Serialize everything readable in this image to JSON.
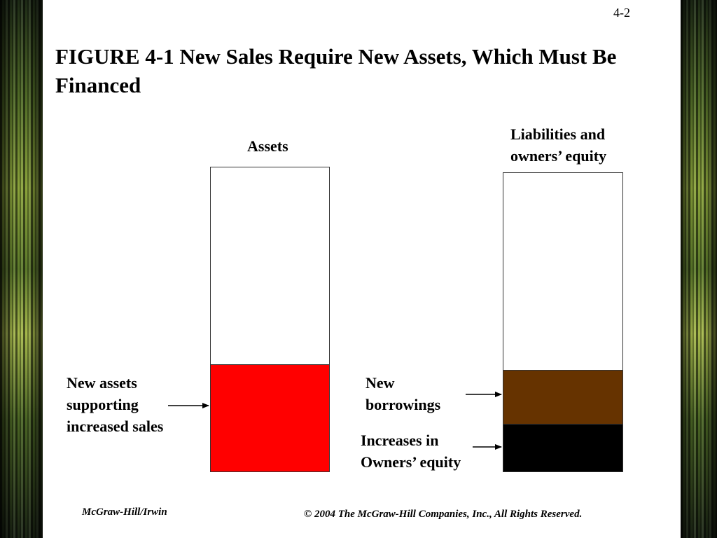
{
  "slide": {
    "page_number": "4-2",
    "title": "FIGURE 4-1 New Sales Require New Assets, Which Must Be Financed"
  },
  "diagram": {
    "assets_heading": "Assets",
    "liabilities_heading": [
      "Liabilities and",
      "owners’ equity"
    ],
    "labels": {
      "new_assets": [
        "New assets",
        "supporting",
        "increased sales"
      ],
      "new_borrowings": [
        "New",
        "borrowings"
      ],
      "increases_equity": [
        "Increases in",
        "Owners’ equity"
      ]
    },
    "colors": {
      "new_assets": "#ff0000",
      "new_borrowings": "#663300",
      "increases_equity": "#000000"
    }
  },
  "footer": {
    "left": "McGraw-Hill/Irwin",
    "right": "© 2004 The McGraw-Hill Companies, Inc., All Rights Reserved."
  }
}
